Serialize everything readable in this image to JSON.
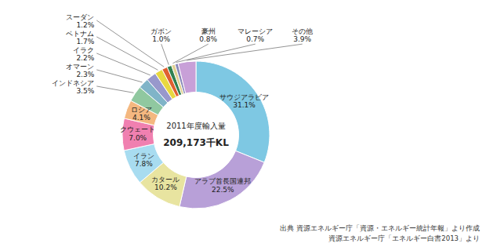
{
  "chart_data": {
    "type": "donut",
    "categories": [
      "サウジアラビア",
      "アラブ首長国連邦",
      "カタール",
      "イラン",
      "クウェート",
      "ロシア",
      "インドネシア",
      "オマーン",
      "イラク",
      "ベトナム",
      "スーダン",
      "ガボン",
      "豪州",
      "マレーシア",
      "その他"
    ],
    "values": [
      31.1,
      22.5,
      10.2,
      7.8,
      7.0,
      4.1,
      3.5,
      2.3,
      2.2,
      1.7,
      1.2,
      1.0,
      0.8,
      0.7,
      3.9
    ],
    "value_labels": [
      "31.1%",
      "22.5%",
      "10.2%",
      "7.8%",
      "7.0%",
      "4.1%",
      "3.5%",
      "2.3%",
      "2.2%",
      "1.7%",
      "1.2%",
      "1.0%",
      "0.8%",
      "0.7%",
      "3.9%"
    ],
    "colors": [
      "#7EC8E3",
      "#B8A0D8",
      "#E8E4A0",
      "#A8DCF0",
      "#F080B0",
      "#F4B880",
      "#90C8A0",
      "#80B4C8",
      "#9898CC",
      "#E8D840",
      "#E06030",
      "#308050",
      "#E0D090",
      "#8888B8",
      "#C8A0D8"
    ],
    "data_labels": true,
    "annotations": [
      "2011年度輸入量",
      "209,173千KL",
      "出典  資源エネルギー庁「資源・エネルギー統計年報」より作成",
      "資源エネルギー庁「エネルギー白書2013」より"
    ]
  }
}
